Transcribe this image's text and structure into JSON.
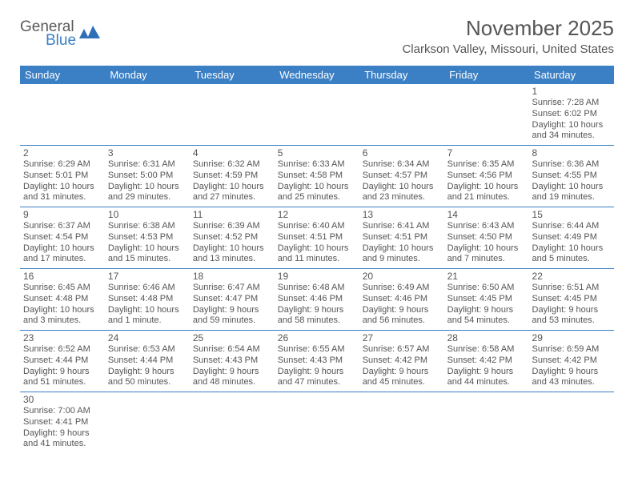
{
  "brand": {
    "general": "General",
    "blue": "Blue",
    "logo_color": "#2f6fb8"
  },
  "title": "November 2025",
  "location": "Clarkson Valley, Missouri, United States",
  "header_bg": "#3b7fc4",
  "days_of_week": [
    "Sunday",
    "Monday",
    "Tuesday",
    "Wednesday",
    "Thursday",
    "Friday",
    "Saturday"
  ],
  "weeks": [
    [
      null,
      null,
      null,
      null,
      null,
      null,
      {
        "n": "1",
        "sr": "Sunrise: 7:28 AM",
        "ss": "Sunset: 6:02 PM",
        "dl": "Daylight: 10 hours and 34 minutes."
      }
    ],
    [
      {
        "n": "2",
        "sr": "Sunrise: 6:29 AM",
        "ss": "Sunset: 5:01 PM",
        "dl": "Daylight: 10 hours and 31 minutes."
      },
      {
        "n": "3",
        "sr": "Sunrise: 6:31 AM",
        "ss": "Sunset: 5:00 PM",
        "dl": "Daylight: 10 hours and 29 minutes."
      },
      {
        "n": "4",
        "sr": "Sunrise: 6:32 AM",
        "ss": "Sunset: 4:59 PM",
        "dl": "Daylight: 10 hours and 27 minutes."
      },
      {
        "n": "5",
        "sr": "Sunrise: 6:33 AM",
        "ss": "Sunset: 4:58 PM",
        "dl": "Daylight: 10 hours and 25 minutes."
      },
      {
        "n": "6",
        "sr": "Sunrise: 6:34 AM",
        "ss": "Sunset: 4:57 PM",
        "dl": "Daylight: 10 hours and 23 minutes."
      },
      {
        "n": "7",
        "sr": "Sunrise: 6:35 AM",
        "ss": "Sunset: 4:56 PM",
        "dl": "Daylight: 10 hours and 21 minutes."
      },
      {
        "n": "8",
        "sr": "Sunrise: 6:36 AM",
        "ss": "Sunset: 4:55 PM",
        "dl": "Daylight: 10 hours and 19 minutes."
      }
    ],
    [
      {
        "n": "9",
        "sr": "Sunrise: 6:37 AM",
        "ss": "Sunset: 4:54 PM",
        "dl": "Daylight: 10 hours and 17 minutes."
      },
      {
        "n": "10",
        "sr": "Sunrise: 6:38 AM",
        "ss": "Sunset: 4:53 PM",
        "dl": "Daylight: 10 hours and 15 minutes."
      },
      {
        "n": "11",
        "sr": "Sunrise: 6:39 AM",
        "ss": "Sunset: 4:52 PM",
        "dl": "Daylight: 10 hours and 13 minutes."
      },
      {
        "n": "12",
        "sr": "Sunrise: 6:40 AM",
        "ss": "Sunset: 4:51 PM",
        "dl": "Daylight: 10 hours and 11 minutes."
      },
      {
        "n": "13",
        "sr": "Sunrise: 6:41 AM",
        "ss": "Sunset: 4:51 PM",
        "dl": "Daylight: 10 hours and 9 minutes."
      },
      {
        "n": "14",
        "sr": "Sunrise: 6:43 AM",
        "ss": "Sunset: 4:50 PM",
        "dl": "Daylight: 10 hours and 7 minutes."
      },
      {
        "n": "15",
        "sr": "Sunrise: 6:44 AM",
        "ss": "Sunset: 4:49 PM",
        "dl": "Daylight: 10 hours and 5 minutes."
      }
    ],
    [
      {
        "n": "16",
        "sr": "Sunrise: 6:45 AM",
        "ss": "Sunset: 4:48 PM",
        "dl": "Daylight: 10 hours and 3 minutes."
      },
      {
        "n": "17",
        "sr": "Sunrise: 6:46 AM",
        "ss": "Sunset: 4:48 PM",
        "dl": "Daylight: 10 hours and 1 minute."
      },
      {
        "n": "18",
        "sr": "Sunrise: 6:47 AM",
        "ss": "Sunset: 4:47 PM",
        "dl": "Daylight: 9 hours and 59 minutes."
      },
      {
        "n": "19",
        "sr": "Sunrise: 6:48 AM",
        "ss": "Sunset: 4:46 PM",
        "dl": "Daylight: 9 hours and 58 minutes."
      },
      {
        "n": "20",
        "sr": "Sunrise: 6:49 AM",
        "ss": "Sunset: 4:46 PM",
        "dl": "Daylight: 9 hours and 56 minutes."
      },
      {
        "n": "21",
        "sr": "Sunrise: 6:50 AM",
        "ss": "Sunset: 4:45 PM",
        "dl": "Daylight: 9 hours and 54 minutes."
      },
      {
        "n": "22",
        "sr": "Sunrise: 6:51 AM",
        "ss": "Sunset: 4:45 PM",
        "dl": "Daylight: 9 hours and 53 minutes."
      }
    ],
    [
      {
        "n": "23",
        "sr": "Sunrise: 6:52 AM",
        "ss": "Sunset: 4:44 PM",
        "dl": "Daylight: 9 hours and 51 minutes."
      },
      {
        "n": "24",
        "sr": "Sunrise: 6:53 AM",
        "ss": "Sunset: 4:44 PM",
        "dl": "Daylight: 9 hours and 50 minutes."
      },
      {
        "n": "25",
        "sr": "Sunrise: 6:54 AM",
        "ss": "Sunset: 4:43 PM",
        "dl": "Daylight: 9 hours and 48 minutes."
      },
      {
        "n": "26",
        "sr": "Sunrise: 6:55 AM",
        "ss": "Sunset: 4:43 PM",
        "dl": "Daylight: 9 hours and 47 minutes."
      },
      {
        "n": "27",
        "sr": "Sunrise: 6:57 AM",
        "ss": "Sunset: 4:42 PM",
        "dl": "Daylight: 9 hours and 45 minutes."
      },
      {
        "n": "28",
        "sr": "Sunrise: 6:58 AM",
        "ss": "Sunset: 4:42 PM",
        "dl": "Daylight: 9 hours and 44 minutes."
      },
      {
        "n": "29",
        "sr": "Sunrise: 6:59 AM",
        "ss": "Sunset: 4:42 PM",
        "dl": "Daylight: 9 hours and 43 minutes."
      }
    ],
    [
      {
        "n": "30",
        "sr": "Sunrise: 7:00 AM",
        "ss": "Sunset: 4:41 PM",
        "dl": "Daylight: 9 hours and 41 minutes."
      },
      null,
      null,
      null,
      null,
      null,
      null
    ]
  ]
}
